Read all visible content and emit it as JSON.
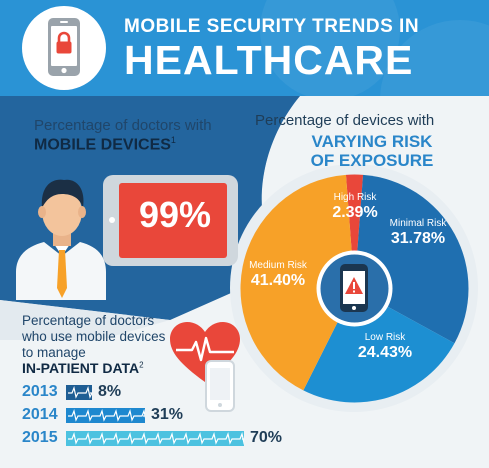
{
  "header": {
    "title_line1": "MOBILE SECURITY TRENDS IN",
    "title_line2": "HEALTHCARE",
    "icon": "mobile-lock-icon"
  },
  "doctors": {
    "label": "Percentage of doctors with",
    "label_strong": "MOBILE DEVICES",
    "footnote": "1",
    "value": "99%",
    "icon": "doctor-icon"
  },
  "risk": {
    "label": "Percentage of devices with",
    "label_strong_line1": "VARYING RISK",
    "label_strong_line2": "OF EXPOSURE"
  },
  "inpatient": {
    "label": "Percentage of doctors who use mobile devices to manage",
    "label_strong": "IN-PATIENT DATA",
    "footnote": "2",
    "icon": "heart-pulse-icon"
  },
  "colors": {
    "primary_blue": "#2a93d5",
    "navy": "#1f5e94",
    "orange": "#f7a128",
    "red": "#e9473a",
    "light_blue": "#4cc2e0"
  },
  "chart_data": [
    {
      "type": "pie",
      "categories": [
        "High Risk",
        "Minimal Risk",
        "Low Risk",
        "Medium Risk"
      ],
      "values": [
        2.39,
        31.78,
        24.43,
        41.4
      ],
      "labels": [
        "2.39%",
        "31.78%",
        "24.43%",
        "41.40%"
      ],
      "colors": [
        "#e9473a",
        "#1f6fb0",
        "#1d8fd2",
        "#f7a128"
      ]
    },
    {
      "type": "bar",
      "categories": [
        "2013",
        "2014",
        "2015"
      ],
      "values": [
        8,
        31,
        70
      ],
      "labels": [
        "8%",
        "31%",
        "70%"
      ]
    }
  ]
}
